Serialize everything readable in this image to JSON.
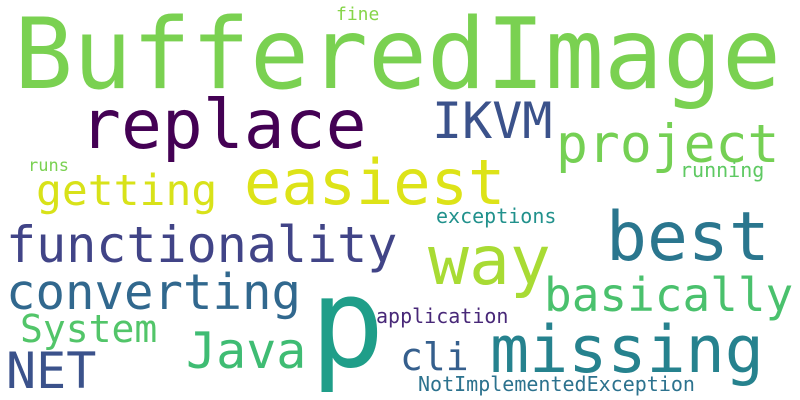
{
  "words": [
    {
      "text": "BufferedImage",
      "color": "#7ad151"
    },
    {
      "text": "p",
      "color": "#1f9e89"
    },
    {
      "text": "easiest",
      "color": "#dde318"
    },
    {
      "text": "replace",
      "color": "#440154"
    },
    {
      "text": "missing",
      "color": "#26828e"
    },
    {
      "text": "way",
      "color": "#a8db34"
    },
    {
      "text": "best",
      "color": "#2a768e"
    },
    {
      "text": "functionality",
      "color": "#414487"
    },
    {
      "text": "project",
      "color": "#75d054"
    },
    {
      "text": "converting",
      "color": "#31688e"
    },
    {
      "text": "basically",
      "color": "#4ac16d"
    },
    {
      "text": "IKVM",
      "color": "#3b528b"
    },
    {
      "text": "Java",
      "color": "#3fbc73"
    },
    {
      "text": "NET",
      "color": "#3b528b"
    },
    {
      "text": "getting",
      "color": "#d8e219"
    },
    {
      "text": "System",
      "color": "#52c569"
    },
    {
      "text": "cli",
      "color": "#355f8d"
    },
    {
      "text": "NotImplementedException",
      "color": "#2c728e"
    },
    {
      "text": "application",
      "color": "#482878"
    },
    {
      "text": "exceptions",
      "color": "#21918c"
    },
    {
      "text": "running",
      "color": "#5ec962"
    },
    {
      "text": "runs",
      "color": "#7ad151"
    },
    {
      "text": "fine",
      "color": "#86d549"
    }
  ]
}
